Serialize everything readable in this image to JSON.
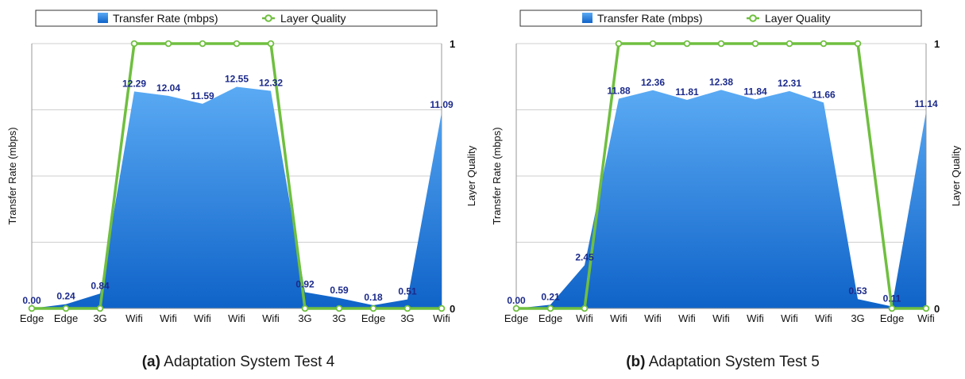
{
  "chart_data": [
    {
      "type": "area",
      "panel_tag": "(a)",
      "caption": "Adaptation System Test 4",
      "legend": [
        "Transfer Rate (mbps)",
        "Layer Quality"
      ],
      "ylabel": "Transfer Rate (mbps)",
      "y2label": "Layer Quality",
      "y2ticks": [
        "1",
        "0"
      ],
      "categories": [
        "Edge",
        "Edge",
        "3G",
        "Wifi",
        "Wifi",
        "Wifi",
        "Wifi",
        "Wifi",
        "3G",
        "3G",
        "Edge",
        "3G",
        "Wifi"
      ],
      "ylim": [
        0,
        15
      ],
      "series": [
        {
          "name": "Transfer Rate (mbps)",
          "kind": "area",
          "values": [
            0.0,
            0.24,
            0.84,
            12.29,
            12.04,
            11.59,
            12.55,
            12.32,
            0.92,
            0.59,
            0.18,
            0.51,
            11.09
          ],
          "labels": [
            "0.00",
            "0.24",
            "0.84",
            "12.29",
            "12.04",
            "11.59",
            "12.55",
            "12.32",
            "0.92",
            "0.59",
            "0.18",
            "0.51",
            "11.09"
          ]
        },
        {
          "name": "Layer Quality",
          "kind": "line",
          "axis": "right",
          "values": [
            0,
            0,
            0,
            1,
            1,
            1,
            1,
            1,
            0,
            0,
            0,
            0,
            0
          ]
        }
      ],
      "colors": {
        "area_top": "#5aaaf4",
        "area_bottom": "#0f63c8",
        "line": "#6fbf3f",
        "label": "#1b2a8c"
      }
    },
    {
      "type": "area",
      "panel_tag": "(b)",
      "caption": "Adaptation System Test 5",
      "legend": [
        "Transfer Rate (mbps)",
        "Layer Quality"
      ],
      "ylabel": "Transfer Rate (mbps)",
      "y2label": "Layer Quality",
      "y2ticks": [
        "1",
        "0"
      ],
      "categories": [
        "Edge",
        "Edge",
        "Wifi",
        "Wifi",
        "Wifi",
        "Wifi",
        "Wifi",
        "Wifi",
        "Wifi",
        "Wifi",
        "3G",
        "Edge",
        "Wifi"
      ],
      "ylim": [
        0,
        15
      ],
      "series": [
        {
          "name": "Transfer Rate (mbps)",
          "kind": "area",
          "values": [
            0.0,
            0.21,
            2.45,
            11.88,
            12.36,
            11.81,
            12.38,
            11.84,
            12.31,
            11.66,
            0.53,
            0.11,
            11.14
          ],
          "labels": [
            "0.00",
            "0.21",
            "2.45",
            "11.88",
            "12.36",
            "11.81",
            "12.38",
            "11.84",
            "12.31",
            "11.66",
            "0.53",
            "0.11",
            "11.14"
          ]
        },
        {
          "name": "Layer Quality",
          "kind": "line",
          "axis": "right",
          "values": [
            0,
            0,
            0,
            1,
            1,
            1,
            1,
            1,
            1,
            1,
            1,
            0,
            0
          ]
        }
      ],
      "colors": {
        "area_top": "#5aaaf4",
        "area_bottom": "#0f63c8",
        "line": "#6fbf3f",
        "label": "#1b2a8c"
      }
    }
  ]
}
